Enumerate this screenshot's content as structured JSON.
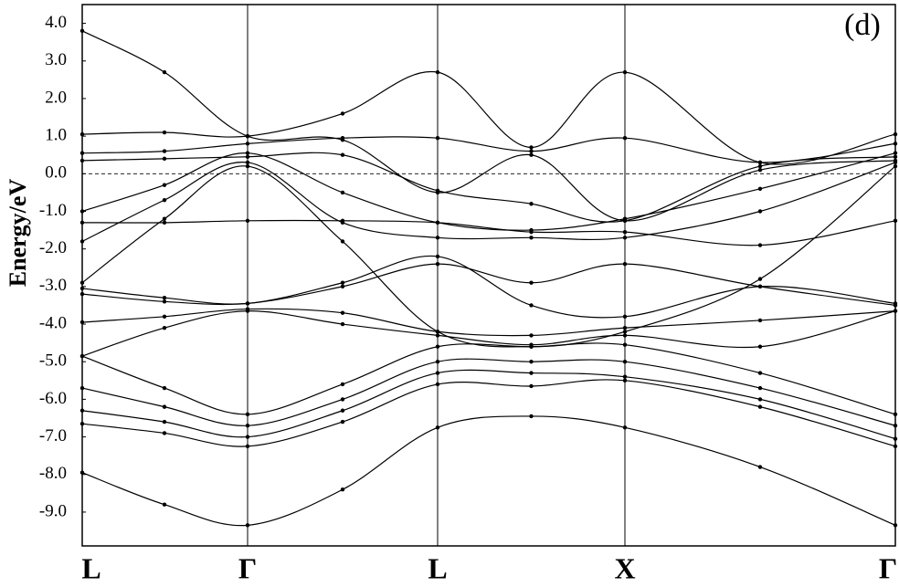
{
  "chart_data": {
    "type": "line",
    "annotation": "(d)",
    "y_label": "Energy/eV",
    "x": [
      0,
      0.9,
      1.81,
      2.85,
      3.89,
      4.915,
      5.94,
      7.42,
      8.9
    ],
    "xlim": [
      0,
      8.9
    ],
    "xticks": [
      {
        "value": 0,
        "label": "L"
      },
      {
        "value": 1.81,
        "label": "Γ"
      },
      {
        "value": 3.89,
        "label": "L"
      },
      {
        "value": 5.94,
        "label": "X"
      },
      {
        "value": 8.9,
        "label": "Γ"
      }
    ],
    "symmetry_lines": true,
    "ylim": [
      -9.9,
      4.5
    ],
    "yticks": [
      {
        "value": 4,
        "label": "4.0"
      },
      {
        "value": 3,
        "label": "3.0"
      },
      {
        "value": 2,
        "label": "2.0"
      },
      {
        "value": 1,
        "label": "1.0"
      },
      {
        "value": 0,
        "label": "0.0"
      },
      {
        "value": -1,
        "label": "-1.0"
      },
      {
        "value": -2,
        "label": "-2.0"
      },
      {
        "value": -3,
        "label": "-3.0"
      },
      {
        "value": -4,
        "label": "-4.0"
      },
      {
        "value": -5,
        "label": "-5.0"
      },
      {
        "value": -6,
        "label": "-6.0"
      },
      {
        "value": -7,
        "label": "-7.0"
      },
      {
        "value": -8,
        "label": "-8.0"
      },
      {
        "value": -9,
        "label": "-9.0"
      }
    ],
    "fermi_level": 0,
    "series": [
      {
        "color": "#000000",
        "values": [
          -7.95,
          -8.8,
          -9.35,
          -8.4,
          -6.75,
          -6.45,
          -6.75,
          -7.8,
          -9.35
        ]
      },
      {
        "color": "#000000",
        "values": [
          -6.65,
          -6.9,
          -7.25,
          -6.6,
          -5.6,
          -5.65,
          -5.5,
          -6.2,
          -7.25
        ]
      },
      {
        "color": "#000000",
        "values": [
          -6.3,
          -6.6,
          -7.0,
          -6.3,
          -5.3,
          -5.3,
          -5.4,
          -6.0,
          -7.05
        ]
      },
      {
        "color": "#000000",
        "values": [
          -5.7,
          -6.2,
          -6.7,
          -6.0,
          -5.0,
          -5.0,
          -5.0,
          -5.7,
          -6.7
        ]
      },
      {
        "color": "#000000",
        "values": [
          -4.85,
          -5.7,
          -6.4,
          -5.6,
          -4.6,
          -4.6,
          -4.55,
          -5.3,
          -6.4
        ]
      },
      {
        "color": "#000000",
        "values": [
          -4.85,
          -4.1,
          -3.65,
          -4.0,
          -4.3,
          -4.55,
          -4.3,
          -4.6,
          -3.65
        ]
      },
      {
        "color": "#000000",
        "values": [
          -3.95,
          -3.8,
          -3.6,
          -3.7,
          -4.2,
          -4.3,
          -4.1,
          -3.9,
          -3.65
        ]
      },
      {
        "color": "#000000",
        "values": [
          -3.2,
          -3.4,
          -3.45,
          -3.0,
          -2.4,
          -2.9,
          -2.4,
          -3.0,
          -3.5
        ]
      },
      {
        "color": "#000000",
        "values": [
          -3.05,
          -3.3,
          -3.45,
          -2.9,
          -2.2,
          -3.5,
          -3.8,
          -3.0,
          -3.45
        ]
      },
      {
        "color": "#000000",
        "values": [
          -2.9,
          -1.2,
          0.2,
          -1.8,
          -4.2,
          -4.6,
          -4.2,
          -2.8,
          0.2
        ]
      },
      {
        "color": "#000000",
        "values": [
          -1.8,
          -0.7,
          0.3,
          -1.3,
          -1.7,
          -1.7,
          -1.7,
          -1.0,
          0.3
        ]
      },
      {
        "color": "#000000",
        "values": [
          -1.0,
          -0.3,
          0.55,
          -0.5,
          -1.3,
          -1.5,
          -1.2,
          -0.4,
          0.55
        ]
      },
      {
        "color": "#000000",
        "values": [
          -1.3,
          -1.3,
          -1.25,
          -1.25,
          -1.3,
          -1.55,
          -1.55,
          -1.9,
          -1.25
        ]
      },
      {
        "color": "#000000",
        "values": [
          0.35,
          0.4,
          0.45,
          0.5,
          -0.45,
          -0.8,
          -1.25,
          0.2,
          0.45
        ]
      },
      {
        "color": "#000000",
        "values": [
          0.55,
          0.6,
          0.8,
          0.95,
          0.95,
          0.6,
          0.95,
          0.3,
          0.8
        ]
      },
      {
        "color": "#000000",
        "values": [
          1.05,
          1.1,
          1.0,
          1.6,
          2.7,
          0.7,
          2.7,
          0.3,
          1.05
        ]
      },
      {
        "color": "#000000",
        "values": [
          3.8,
          2.7,
          1.0,
          0.9,
          -0.5,
          0.5,
          -1.25,
          0.1,
          0.35
        ]
      }
    ]
  }
}
